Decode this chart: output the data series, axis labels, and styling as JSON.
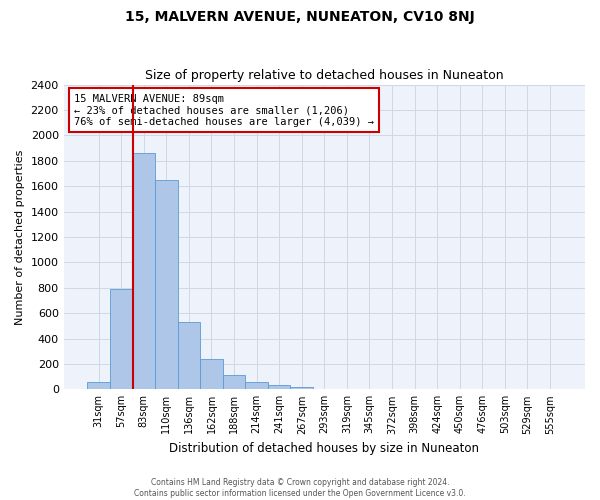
{
  "title": "15, MALVERN AVENUE, NUNEATON, CV10 8NJ",
  "subtitle": "Size of property relative to detached houses in Nuneaton",
  "xlabel": "Distribution of detached houses by size in Nuneaton",
  "ylabel": "Number of detached properties",
  "categories": [
    "31sqm",
    "57sqm",
    "83sqm",
    "110sqm",
    "136sqm",
    "162sqm",
    "188sqm",
    "214sqm",
    "241sqm",
    "267sqm",
    "293sqm",
    "319sqm",
    "345sqm",
    "372sqm",
    "398sqm",
    "424sqm",
    "450sqm",
    "476sqm",
    "503sqm",
    "529sqm",
    "555sqm"
  ],
  "values": [
    60,
    790,
    1860,
    1650,
    530,
    240,
    110,
    60,
    35,
    20,
    0,
    0,
    0,
    0,
    0,
    0,
    0,
    0,
    0,
    0,
    0
  ],
  "bar_color": "#aec6e8",
  "bar_edge_color": "#5b9bd5",
  "red_line_index": 2,
  "annotation_title": "15 MALVERN AVENUE: 89sqm",
  "annotation_line1": "← 23% of detached houses are smaller (1,206)",
  "annotation_line2": "76% of semi-detached houses are larger (4,039) →",
  "annotation_box_color": "#ffffff",
  "annotation_box_edge": "#cc0000",
  "red_line_color": "#cc0000",
  "grid_color": "#d0d8e8",
  "background_color": "#eef2fa",
  "ylim": [
    0,
    2400
  ],
  "yticks": [
    0,
    200,
    400,
    600,
    800,
    1000,
    1200,
    1400,
    1600,
    1800,
    2000,
    2200,
    2400
  ],
  "footer1": "Contains HM Land Registry data © Crown copyright and database right 2024.",
  "footer2": "Contains public sector information licensed under the Open Government Licence v3.0."
}
